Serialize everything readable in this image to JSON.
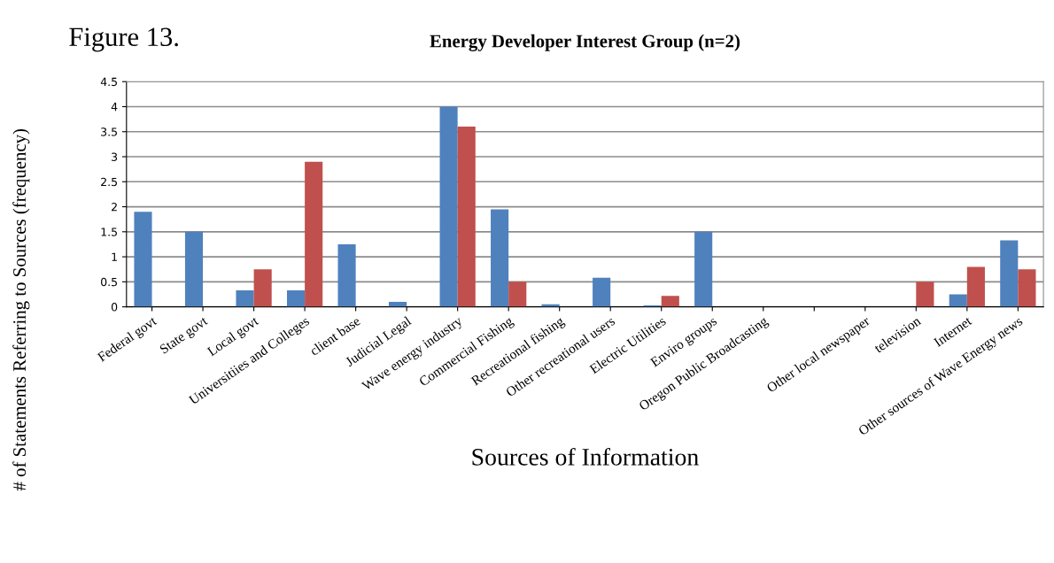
{
  "chart_data": {
    "type": "bar",
    "title": "Energy Developer Interest Group (n=2)",
    "annotations": [
      "Figure 13."
    ],
    "xlabel": "Sources of Information",
    "ylabel": "# of Statements Referring to Sources (frequency)",
    "categories": [
      "Federal govt",
      "State govt",
      "Local govt",
      "Universitiies and Colleges",
      "client base",
      "Judicial Legal",
      "Wave energy industry",
      "Commercial Fishing",
      "Recreational fishing",
      "Other recreational users",
      "Electric Utilities",
      "Enviro groups",
      "Oregon Public Broadcasting",
      null,
      "Other local newspaper",
      "television",
      "Internet",
      "Other sources of Wave Energy news"
    ],
    "series": [
      {
        "color": "#4f81bd",
        "values": [
          1.9,
          1.5,
          0.33,
          0.33,
          1.25,
          0.1,
          4.0,
          1.95,
          0.05,
          0.58,
          0.03,
          1.5,
          0,
          0,
          0,
          0,
          0.25,
          1.33
        ]
      },
      {
        "color": "#c0504d",
        "values": [
          0,
          0,
          0.75,
          2.9,
          0,
          0,
          3.6,
          0.5,
          0,
          0,
          0.22,
          0,
          0,
          0,
          0,
          0.5,
          0.8,
          0.75
        ]
      }
    ],
    "ylim": [
      0,
      4.5
    ],
    "yticks": [
      0,
      0.5,
      1,
      1.5,
      2,
      2.5,
      3,
      3.5,
      4,
      4.5
    ],
    "grid": "y"
  }
}
